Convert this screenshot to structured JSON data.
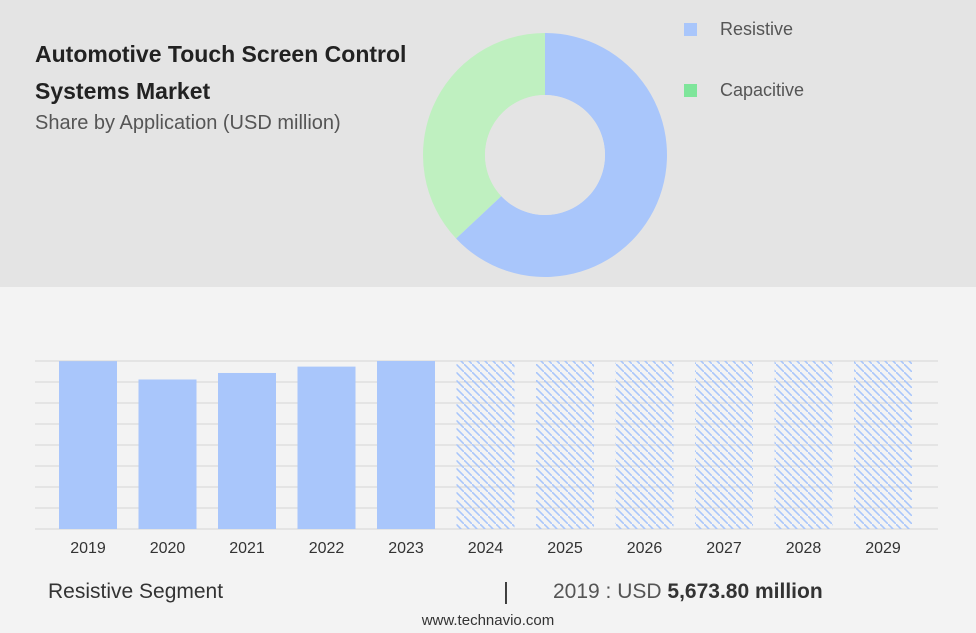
{
  "header": {
    "title": "Automotive Touch Screen Control Systems Market",
    "subtitle": "Share by Application (USD million)"
  },
  "legend": [
    {
      "label": "Resistive",
      "color": "#a9c6fb"
    },
    {
      "label": "Capacitive",
      "color": "#7ee59a"
    }
  ],
  "donut_data": {
    "type": "pie",
    "series": [
      {
        "name": "Resistive",
        "value": 63,
        "color": "#a9c6fb"
      },
      {
        "name": "Capacitive",
        "value": 37,
        "color": "#bff0c0"
      }
    ]
  },
  "chart_data": {
    "type": "bar",
    "title": "",
    "xlabel": "",
    "ylabel": "",
    "categories": [
      "2019",
      "2020",
      "2021",
      "2022",
      "2023",
      "2024",
      "2025",
      "2026",
      "2027",
      "2028",
      "2029"
    ],
    "values": [
      5673.8,
      5055,
      5275,
      5490,
      5680,
      5680,
      5680,
      5680,
      5680,
      5680,
      5680
    ],
    "forecast": [
      false,
      false,
      false,
      false,
      false,
      true,
      true,
      true,
      true,
      true,
      true
    ],
    "ylim": [
      0,
      5680
    ],
    "grid": true,
    "bar_color": "#a9c6fb"
  },
  "footer": {
    "segment_label": "Resistive Segment",
    "divider": "|",
    "value_prefix": "2019 : USD",
    "value_bold": "5,673.80 million"
  },
  "source": "www.technavio.com"
}
